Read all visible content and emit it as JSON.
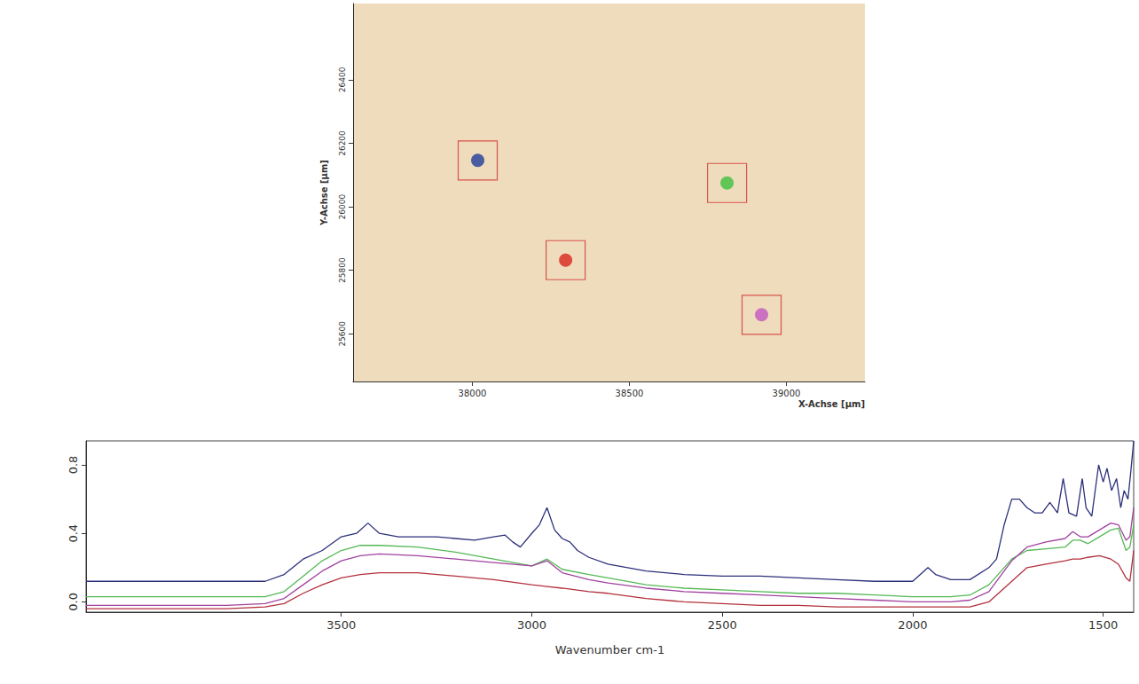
{
  "chart_data": [
    {
      "type": "scatter",
      "x_label": "X-Achse [µm]",
      "y_label": "Y-Achse [µm]",
      "xlim": [
        37620,
        39250
      ],
      "xticks": [
        38000,
        38500,
        39000
      ],
      "ylim": [
        25450,
        26640
      ],
      "yticks": [
        25600,
        25800,
        26000,
        26200,
        26400
      ],
      "grid": false,
      "series": [
        {
          "color": "#1f3c99",
          "marker": "circle",
          "x": [
            38017
          ],
          "values": [
            26146
          ]
        },
        {
          "color": "#3fbf3f",
          "marker": "circle",
          "x": [
            38811
          ],
          "values": [
            26075
          ]
        },
        {
          "color": "#d8261e",
          "marker": "circle",
          "x": [
            38297
          ],
          "values": [
            25832
          ]
        },
        {
          "color": "#c257c2",
          "marker": "circle",
          "x": [
            38921
          ],
          "values": [
            25660
          ]
        }
      ]
    },
    {
      "type": "line",
      "x_label": "Wavenumber cm-1",
      "xlim": [
        4170,
        1420
      ],
      "xticks": [
        3500,
        3000,
        2500,
        2000,
        1500
      ],
      "ylim": [
        -0.06,
        0.94
      ],
      "yticks": [
        {
          "value": 0,
          "label": "0.0"
        },
        0.4,
        0.8
      ],
      "grid": false,
      "series": [
        {
          "color": "#2b2f7a",
          "x": [
            4170,
            4000,
            3800,
            3700,
            3650,
            3600,
            3550,
            3500,
            3460,
            3430,
            3400,
            3350,
            3250,
            3150,
            3100,
            3070,
            3050,
            3030,
            3000,
            2980,
            2960,
            2940,
            2920,
            2900,
            2880,
            2850,
            2800,
            2700,
            2600,
            2500,
            2400,
            2300,
            2200,
            2100,
            2000,
            1960,
            1940,
            1900,
            1850,
            1800,
            1780,
            1760,
            1740,
            1720,
            1700,
            1680,
            1660,
            1640,
            1620,
            1605,
            1590,
            1570,
            1555,
            1545,
            1530,
            1512,
            1500,
            1490,
            1478,
            1465,
            1454,
            1445,
            1435,
            1428,
            1420
          ],
          "values": [
            0.12,
            0.12,
            0.12,
            0.12,
            0.16,
            0.25,
            0.3,
            0.38,
            0.4,
            0.46,
            0.4,
            0.38,
            0.38,
            0.36,
            0.38,
            0.39,
            0.35,
            0.32,
            0.4,
            0.45,
            0.55,
            0.42,
            0.37,
            0.35,
            0.3,
            0.26,
            0.22,
            0.18,
            0.16,
            0.15,
            0.15,
            0.14,
            0.13,
            0.12,
            0.12,
            0.2,
            0.16,
            0.13,
            0.13,
            0.2,
            0.25,
            0.45,
            0.6,
            0.6,
            0.55,
            0.52,
            0.52,
            0.58,
            0.52,
            0.72,
            0.52,
            0.5,
            0.72,
            0.55,
            0.5,
            0.8,
            0.7,
            0.78,
            0.65,
            0.72,
            0.55,
            0.65,
            0.6,
            0.75,
            0.94
          ]
        },
        {
          "color": "#55b855",
          "x": [
            4170,
            4000,
            3800,
            3700,
            3650,
            3600,
            3550,
            3500,
            3450,
            3400,
            3300,
            3200,
            3100,
            3000,
            2960,
            2920,
            2850,
            2800,
            2700,
            2600,
            2500,
            2400,
            2300,
            2200,
            2100,
            2000,
            1900,
            1850,
            1800,
            1760,
            1740,
            1700,
            1650,
            1600,
            1580,
            1560,
            1540,
            1510,
            1480,
            1460,
            1440,
            1430,
            1420
          ],
          "values": [
            0.03,
            0.03,
            0.03,
            0.03,
            0.06,
            0.15,
            0.24,
            0.3,
            0.33,
            0.33,
            0.32,
            0.29,
            0.25,
            0.21,
            0.25,
            0.19,
            0.16,
            0.14,
            0.1,
            0.08,
            0.07,
            0.06,
            0.05,
            0.05,
            0.04,
            0.03,
            0.03,
            0.04,
            0.1,
            0.2,
            0.25,
            0.3,
            0.31,
            0.32,
            0.36,
            0.36,
            0.34,
            0.38,
            0.42,
            0.43,
            0.3,
            0.32,
            0.45
          ]
        },
        {
          "color": "#a0429e",
          "x": [
            4170,
            4000,
            3800,
            3700,
            3650,
            3600,
            3550,
            3500,
            3450,
            3400,
            3300,
            3200,
            3100,
            3000,
            2960,
            2920,
            2850,
            2800,
            2700,
            2600,
            2500,
            2400,
            2300,
            2200,
            2100,
            2000,
            1900,
            1850,
            1800,
            1760,
            1740,
            1700,
            1650,
            1600,
            1580,
            1560,
            1540,
            1510,
            1480,
            1460,
            1440,
            1430,
            1420
          ],
          "values": [
            -0.02,
            -0.02,
            -0.02,
            -0.01,
            0.02,
            0.1,
            0.18,
            0.24,
            0.27,
            0.28,
            0.27,
            0.25,
            0.23,
            0.21,
            0.24,
            0.17,
            0.13,
            0.11,
            0.08,
            0.06,
            0.05,
            0.04,
            0.03,
            0.02,
            0.01,
            0.0,
            0.0,
            0.01,
            0.06,
            0.18,
            0.24,
            0.32,
            0.35,
            0.37,
            0.41,
            0.38,
            0.38,
            0.42,
            0.46,
            0.45,
            0.36,
            0.38,
            0.55
          ]
        },
        {
          "color": "#b3303c",
          "x": [
            4170,
            4000,
            3800,
            3700,
            3650,
            3600,
            3550,
            3500,
            3450,
            3400,
            3300,
            3200,
            3100,
            3000,
            2960,
            2920,
            2850,
            2800,
            2700,
            2600,
            2500,
            2400,
            2300,
            2200,
            2100,
            2000,
            1900,
            1850,
            1800,
            1760,
            1740,
            1700,
            1650,
            1600,
            1580,
            1560,
            1540,
            1510,
            1480,
            1460,
            1440,
            1430,
            1420
          ],
          "values": [
            -0.04,
            -0.04,
            -0.04,
            -0.03,
            -0.01,
            0.05,
            0.1,
            0.14,
            0.16,
            0.17,
            0.17,
            0.15,
            0.13,
            0.1,
            0.09,
            0.08,
            0.06,
            0.05,
            0.02,
            0.0,
            -0.01,
            -0.02,
            -0.02,
            -0.03,
            -0.03,
            -0.03,
            -0.03,
            -0.03,
            0.0,
            0.08,
            0.12,
            0.2,
            0.22,
            0.24,
            0.25,
            0.25,
            0.26,
            0.27,
            0.25,
            0.22,
            0.14,
            0.12,
            0.3
          ]
        }
      ]
    }
  ]
}
